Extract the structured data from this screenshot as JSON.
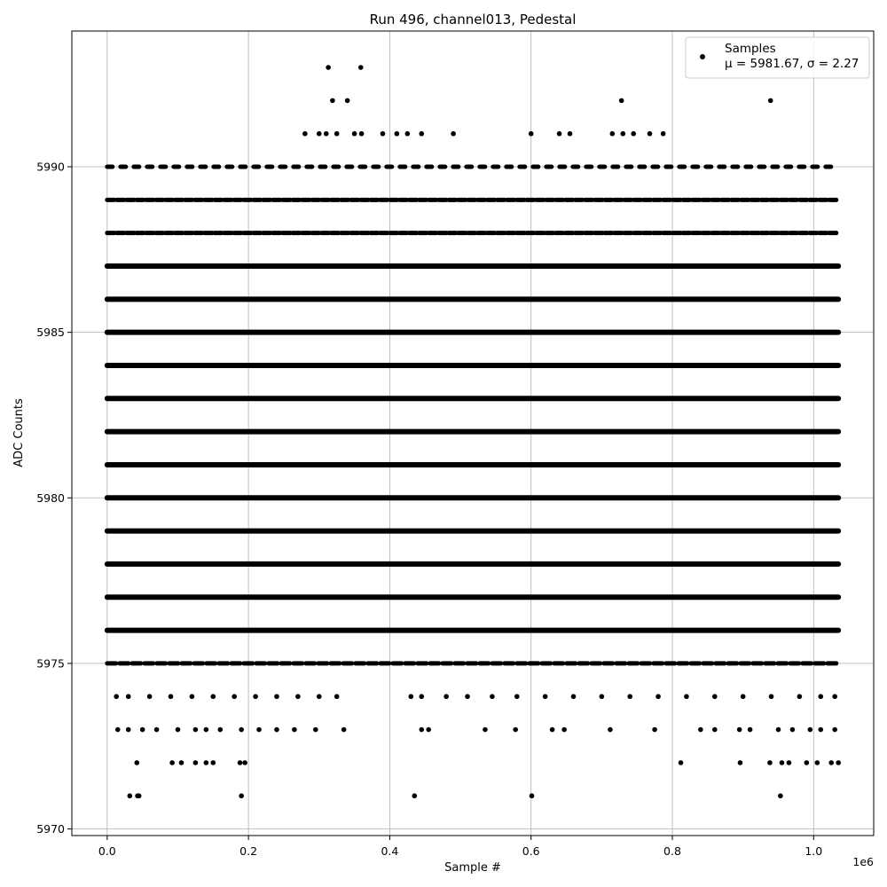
{
  "chart_data": {
    "type": "scatter",
    "title": "Run 496, channel013, Pedestal",
    "xlabel": "Sample #",
    "ylabel": "ADC Counts",
    "x_offset_label": "1e6",
    "xlim": [
      -0.05,
      1.085
    ],
    "ylim": [
      5969.8,
      5994.1
    ],
    "x_ticks": [
      0.0,
      0.2,
      0.4,
      0.6,
      0.8,
      1.0
    ],
    "x_tick_labels": [
      "0.0",
      "0.2",
      "0.4",
      "0.6",
      "0.8",
      "1.0"
    ],
    "y_ticks": [
      5970,
      5975,
      5980,
      5985,
      5990
    ],
    "y_tick_labels": [
      "5970",
      "5975",
      "5980",
      "5985",
      "5990"
    ],
    "grid": true,
    "legend_position": "top-right",
    "marker_color": "#000000",
    "series": [
      {
        "name": "Samples",
        "stats_label": "μ = 5981.67, σ = 2.27",
        "x_range": [
          0.0,
          1.035
        ],
        "continuous_levels": [
          5976,
          5977,
          5978,
          5979,
          5980,
          5981,
          5982,
          5983,
          5984,
          5985,
          5986,
          5987
        ],
        "dense_levels": [
          5975,
          5988,
          5989,
          5990
        ],
        "points": [
          [
            0.313,
            5993
          ],
          [
            0.359,
            5993
          ],
          [
            0.319,
            5992
          ],
          [
            0.34,
            5992
          ],
          [
            0.728,
            5992
          ],
          [
            0.939,
            5992
          ],
          [
            0.28,
            5991
          ],
          [
            0.3,
            5991
          ],
          [
            0.31,
            5991
          ],
          [
            0.325,
            5991
          ],
          [
            0.35,
            5991
          ],
          [
            0.36,
            5991
          ],
          [
            0.39,
            5991
          ],
          [
            0.41,
            5991
          ],
          [
            0.425,
            5991
          ],
          [
            0.445,
            5991
          ],
          [
            0.49,
            5991
          ],
          [
            0.6,
            5991
          ],
          [
            0.64,
            5991
          ],
          [
            0.655,
            5991
          ],
          [
            0.715,
            5991
          ],
          [
            0.73,
            5991
          ],
          [
            0.745,
            5991
          ],
          [
            0.768,
            5991
          ],
          [
            0.787,
            5991
          ],
          [
            0.013,
            5974
          ],
          [
            0.03,
            5974
          ],
          [
            0.06,
            5974
          ],
          [
            0.09,
            5974
          ],
          [
            0.12,
            5974
          ],
          [
            0.15,
            5974
          ],
          [
            0.18,
            5974
          ],
          [
            0.21,
            5974
          ],
          [
            0.24,
            5974
          ],
          [
            0.27,
            5974
          ],
          [
            0.3,
            5974
          ],
          [
            0.325,
            5974
          ],
          [
            0.43,
            5974
          ],
          [
            0.445,
            5974
          ],
          [
            0.48,
            5974
          ],
          [
            0.51,
            5974
          ],
          [
            0.545,
            5974
          ],
          [
            0.58,
            5974
          ],
          [
            0.62,
            5974
          ],
          [
            0.66,
            5974
          ],
          [
            0.7,
            5974
          ],
          [
            0.74,
            5974
          ],
          [
            0.78,
            5974
          ],
          [
            0.82,
            5974
          ],
          [
            0.86,
            5974
          ],
          [
            0.9,
            5974
          ],
          [
            0.94,
            5974
          ],
          [
            0.98,
            5974
          ],
          [
            1.01,
            5974
          ],
          [
            1.03,
            5974
          ],
          [
            0.015,
            5973
          ],
          [
            0.03,
            5973
          ],
          [
            0.05,
            5973
          ],
          [
            0.07,
            5973
          ],
          [
            0.1,
            5973
          ],
          [
            0.125,
            5973
          ],
          [
            0.14,
            5973
          ],
          [
            0.16,
            5973
          ],
          [
            0.19,
            5973
          ],
          [
            0.215,
            5973
          ],
          [
            0.24,
            5973
          ],
          [
            0.265,
            5973
          ],
          [
            0.295,
            5973
          ],
          [
            0.335,
            5973
          ],
          [
            0.445,
            5973
          ],
          [
            0.455,
            5973
          ],
          [
            0.535,
            5973
          ],
          [
            0.578,
            5973
          ],
          [
            0.63,
            5973
          ],
          [
            0.647,
            5973
          ],
          [
            0.712,
            5973
          ],
          [
            0.775,
            5973
          ],
          [
            0.84,
            5973
          ],
          [
            0.86,
            5973
          ],
          [
            0.895,
            5973
          ],
          [
            0.91,
            5973
          ],
          [
            0.95,
            5973
          ],
          [
            0.97,
            5973
          ],
          [
            0.995,
            5973
          ],
          [
            1.01,
            5973
          ],
          [
            1.03,
            5973
          ],
          [
            0.042,
            5972
          ],
          [
            0.092,
            5972
          ],
          [
            0.105,
            5972
          ],
          [
            0.125,
            5972
          ],
          [
            0.14,
            5972
          ],
          [
            0.15,
            5972
          ],
          [
            0.188,
            5972
          ],
          [
            0.195,
            5972
          ],
          [
            0.812,
            5972
          ],
          [
            0.896,
            5972
          ],
          [
            0.938,
            5972
          ],
          [
            0.955,
            5972
          ],
          [
            0.965,
            5972
          ],
          [
            0.99,
            5972
          ],
          [
            1.005,
            5972
          ],
          [
            1.025,
            5972
          ],
          [
            1.035,
            5972
          ],
          [
            0.032,
            5971
          ],
          [
            0.043,
            5971
          ],
          [
            0.045,
            5971
          ],
          [
            0.19,
            5971
          ],
          [
            0.435,
            5971
          ],
          [
            0.601,
            5971
          ],
          [
            0.953,
            5971
          ]
        ]
      }
    ]
  }
}
